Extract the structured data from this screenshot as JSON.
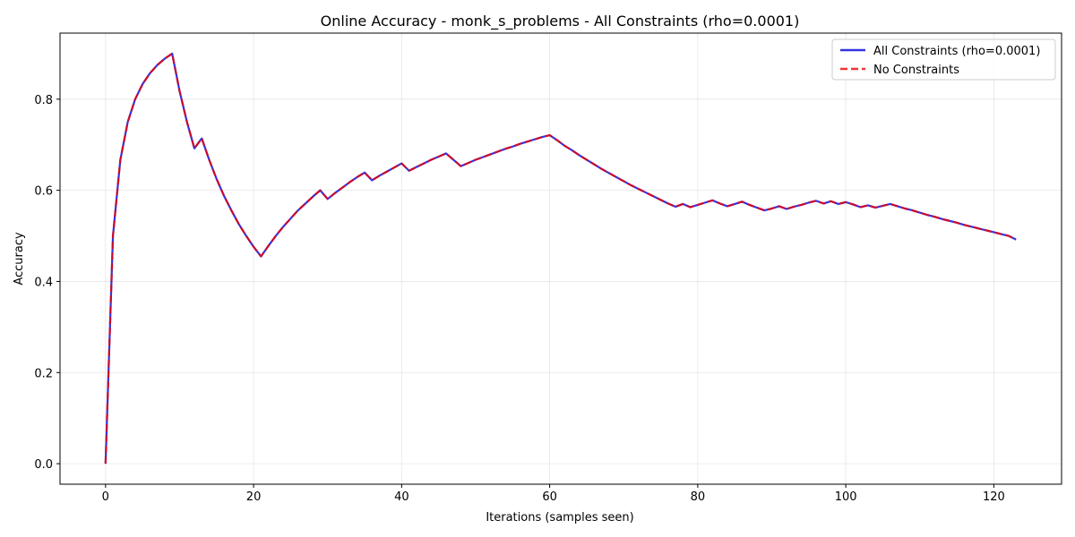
{
  "chart_data": {
    "type": "line",
    "title": "Online Accuracy - monk_s_problems - All Constraints (rho=0.0001)",
    "xlabel": "Iterations (samples seen)",
    "ylabel": "Accuracy",
    "xlim": [
      -6.15,
      129.15
    ],
    "ylim": [
      -0.045,
      0.945
    ],
    "xticks": [
      0,
      20,
      40,
      60,
      80,
      100,
      120
    ],
    "yticks": [
      0.0,
      0.2,
      0.4,
      0.6,
      0.8
    ],
    "xtick_labels": [
      "0",
      "20",
      "40",
      "60",
      "80",
      "100",
      "120"
    ],
    "ytick_labels": [
      "0.0",
      "0.2",
      "0.4",
      "0.6",
      "0.8"
    ],
    "grid": true,
    "legend_position": "top-right",
    "x": [
      0,
      1,
      2,
      3,
      4,
      5,
      6,
      7,
      8,
      9,
      10,
      11,
      12,
      13,
      14,
      15,
      16,
      17,
      18,
      19,
      20,
      21,
      22,
      23,
      24,
      25,
      26,
      27,
      28,
      29,
      30,
      31,
      32,
      33,
      34,
      35,
      36,
      37,
      38,
      39,
      40,
      41,
      42,
      43,
      44,
      45,
      46,
      47,
      48,
      49,
      50,
      51,
      52,
      53,
      54,
      55,
      56,
      57,
      58,
      59,
      60,
      61,
      62,
      63,
      64,
      65,
      66,
      67,
      68,
      69,
      70,
      71,
      72,
      73,
      74,
      75,
      76,
      77,
      78,
      79,
      80,
      81,
      82,
      83,
      84,
      85,
      86,
      87,
      88,
      89,
      90,
      91,
      92,
      93,
      94,
      95,
      96,
      97,
      98,
      99,
      100,
      101,
      102,
      103,
      104,
      105,
      106,
      107,
      108,
      109,
      110,
      111,
      112,
      113,
      114,
      115,
      116,
      117,
      118,
      119,
      120,
      121,
      122,
      123
    ],
    "series": [
      {
        "name": "All Constraints (rho=0.0001)",
        "color": "#0000dd",
        "style": "solid",
        "values": [
          0.0,
          0.5,
          0.667,
          0.75,
          0.8,
          0.833,
          0.857,
          0.875,
          0.889,
          0.9,
          0.818,
          0.75,
          0.692,
          0.714,
          0.667,
          0.625,
          0.588,
          0.556,
          0.526,
          0.5,
          0.476,
          0.455,
          0.478,
          0.5,
          0.52,
          0.538,
          0.556,
          0.571,
          0.586,
          0.6,
          0.581,
          0.594,
          0.606,
          0.618,
          0.629,
          0.639,
          0.622,
          0.632,
          0.641,
          0.65,
          0.659,
          0.643,
          0.651,
          0.659,
          0.667,
          0.674,
          0.681,
          0.667,
          0.653,
          0.66,
          0.667,
          0.673,
          0.679,
          0.685,
          0.691,
          0.696,
          0.702,
          0.707,
          0.712,
          0.717,
          0.721,
          0.71,
          0.698,
          0.688,
          0.677,
          0.667,
          0.657,
          0.647,
          0.638,
          0.629,
          0.62,
          0.611,
          0.603,
          0.595,
          0.587,
          0.579,
          0.571,
          0.564,
          0.57,
          0.563,
          0.568,
          0.573,
          0.578,
          0.571,
          0.565,
          0.57,
          0.575,
          0.568,
          0.562,
          0.556,
          0.56,
          0.565,
          0.559,
          0.564,
          0.568,
          0.573,
          0.577,
          0.571,
          0.576,
          0.57,
          0.574,
          0.569,
          0.563,
          0.567,
          0.562,
          0.566,
          0.57,
          0.565,
          0.56,
          0.556,
          0.551,
          0.546,
          0.542,
          0.537,
          0.533,
          0.529,
          0.524,
          0.52,
          0.516,
          0.512,
          0.508,
          0.504,
          0.5,
          0.492
        ]
      },
      {
        "name": "No Constraints",
        "color": "#ee0000",
        "style": "dashed",
        "values": [
          0.0,
          0.5,
          0.667,
          0.75,
          0.8,
          0.833,
          0.857,
          0.875,
          0.889,
          0.9,
          0.818,
          0.75,
          0.692,
          0.714,
          0.667,
          0.625,
          0.588,
          0.556,
          0.526,
          0.5,
          0.476,
          0.455,
          0.478,
          0.5,
          0.52,
          0.538,
          0.556,
          0.571,
          0.586,
          0.6,
          0.581,
          0.594,
          0.606,
          0.618,
          0.629,
          0.639,
          0.622,
          0.632,
          0.641,
          0.65,
          0.659,
          0.643,
          0.651,
          0.659,
          0.667,
          0.674,
          0.681,
          0.667,
          0.653,
          0.66,
          0.667,
          0.673,
          0.679,
          0.685,
          0.691,
          0.696,
          0.702,
          0.707,
          0.712,
          0.717,
          0.721,
          0.71,
          0.698,
          0.688,
          0.677,
          0.667,
          0.657,
          0.647,
          0.638,
          0.629,
          0.62,
          0.611,
          0.603,
          0.595,
          0.587,
          0.579,
          0.571,
          0.564,
          0.57,
          0.563,
          0.568,
          0.573,
          0.578,
          0.571,
          0.565,
          0.57,
          0.575,
          0.568,
          0.562,
          0.556,
          0.56,
          0.565,
          0.559,
          0.564,
          0.568,
          0.573,
          0.577,
          0.571,
          0.576,
          0.57,
          0.574,
          0.569,
          0.563,
          0.567,
          0.562,
          0.566,
          0.57,
          0.565,
          0.56,
          0.556,
          0.551,
          0.546,
          0.542,
          0.537,
          0.533,
          0.529,
          0.524,
          0.52,
          0.516,
          0.512,
          0.508,
          0.504,
          0.5,
          0.492
        ]
      }
    ]
  }
}
